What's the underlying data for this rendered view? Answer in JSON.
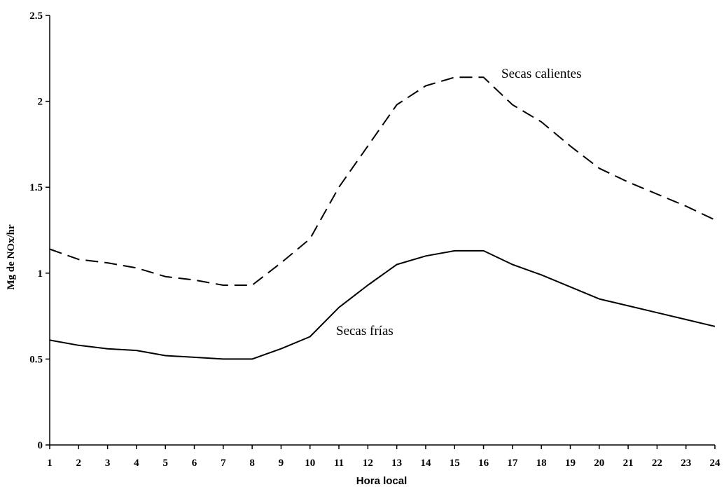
{
  "chart_data": {
    "type": "line",
    "title": "",
    "xlabel": "Hora local",
    "ylabel": "Mg de NOx/hr",
    "x": [
      1,
      2,
      3,
      4,
      5,
      6,
      7,
      8,
      9,
      10,
      11,
      12,
      13,
      14,
      15,
      16,
      17,
      18,
      19,
      20,
      21,
      22,
      23,
      24
    ],
    "xlim": [
      1,
      24
    ],
    "ylim": [
      0,
      2.5
    ],
    "yticks": [
      "0",
      "0.5",
      "1",
      "1.5",
      "2",
      "2.5"
    ],
    "xticks": [
      "1",
      "2",
      "3",
      "4",
      "5",
      "6",
      "7",
      "8",
      "9",
      "10",
      "11",
      "12",
      "13",
      "14",
      "15",
      "16",
      "17",
      "18",
      "19",
      "20",
      "21",
      "22",
      "23",
      "24"
    ],
    "grid": false,
    "legend": "none",
    "series": [
      {
        "name": "Secas calientes",
        "style": "dashed",
        "color": "#000000",
        "values": [
          1.14,
          1.08,
          1.06,
          1.03,
          0.98,
          0.96,
          0.93,
          0.93,
          1.06,
          1.2,
          1.5,
          1.74,
          1.98,
          2.09,
          2.14,
          2.14,
          1.98,
          1.88,
          1.74,
          1.61,
          1.53,
          1.46,
          1.39,
          1.31
        ]
      },
      {
        "name": "Secas frías",
        "style": "solid",
        "color": "#000000",
        "values": [
          0.61,
          0.58,
          0.56,
          0.55,
          0.52,
          0.51,
          0.5,
          0.5,
          0.56,
          0.63,
          0.8,
          0.93,
          1.05,
          1.1,
          1.13,
          1.13,
          1.05,
          0.99,
          0.92,
          0.85,
          0.81,
          0.77,
          0.73,
          0.69
        ]
      }
    ],
    "annotations": [
      {
        "text": "Secas calientes",
        "series": 0,
        "near_x": 16.5,
        "near_y": 2.29
      },
      {
        "text": "Secas frías",
        "series": 1,
        "near_x": 10.8,
        "near_y": 0.64
      }
    ]
  }
}
